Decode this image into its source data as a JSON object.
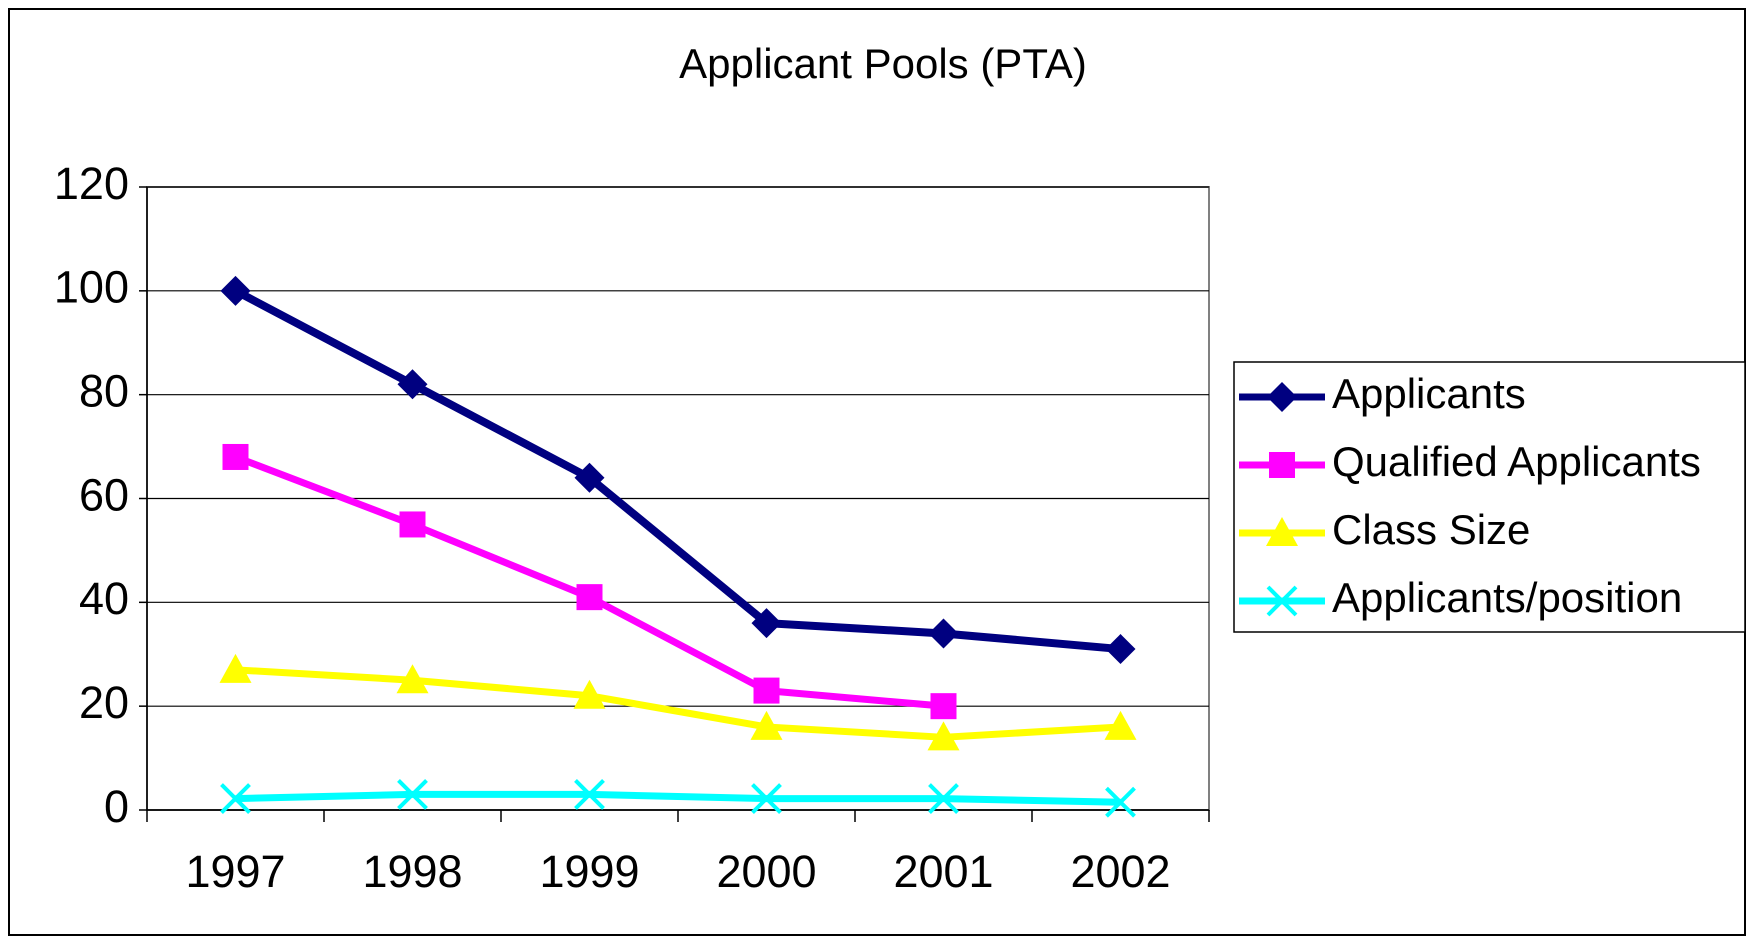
{
  "chart_data": {
    "type": "line",
    "title": "Applicant Pools (PTA)",
    "categories": [
      "1997",
      "1998",
      "1999",
      "2000",
      "2001",
      "2002"
    ],
    "series": [
      {
        "name": "Applicants",
        "color": "#000080",
        "marker": "diamond",
        "values": [
          100,
          82,
          64,
          36,
          34,
          31
        ]
      },
      {
        "name": "Qualified Applicants",
        "color": "#ff00ff",
        "marker": "square",
        "values": [
          68,
          55,
          41,
          23,
          20,
          null
        ]
      },
      {
        "name": "Class Size",
        "color": "#ffff00",
        "marker": "triangle",
        "values": [
          27,
          25,
          22,
          16,
          14,
          16
        ]
      },
      {
        "name": "Applicants/position",
        "color": "#00ffff",
        "marker": "x",
        "values": [
          2.2,
          3,
          3,
          2.2,
          2.2,
          1.5
        ]
      }
    ],
    "ylim": [
      0,
      120
    ],
    "yticks": [
      0,
      20,
      40,
      60,
      80,
      100,
      120
    ],
    "grid": true,
    "legend": "right"
  }
}
